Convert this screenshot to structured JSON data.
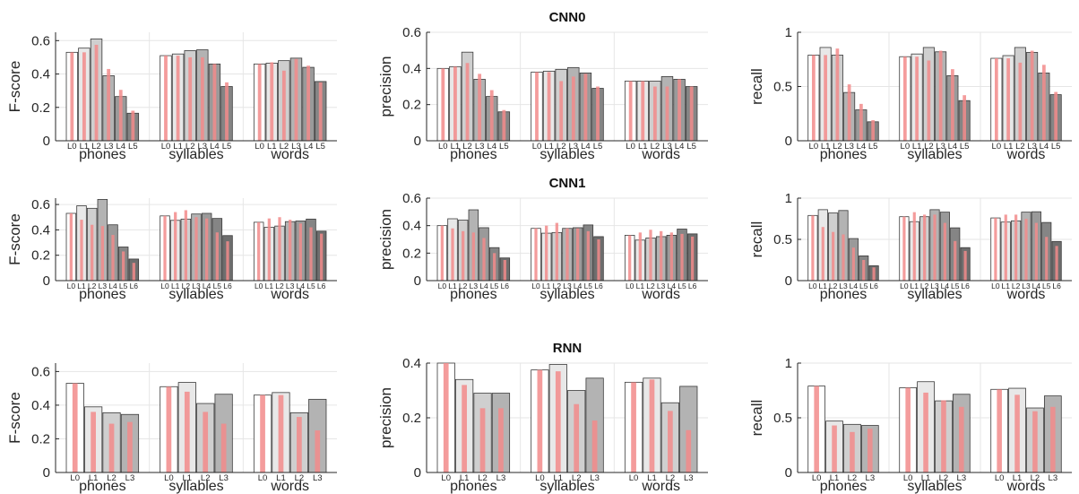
{
  "figure": {
    "colors": {
      "bar_fills": [
        "#ffffff",
        "#e8e8e8",
        "#cfcfcf",
        "#b3b3b3",
        "#9a9a9a",
        "#858585",
        "#6e6e6e"
      ],
      "bar_edge": "#3a3a3a",
      "overlay": "#f28b8b",
      "axis": "#262626",
      "grid": "#e6e6e6"
    },
    "row_titles": [
      "CNN0",
      "CNN1",
      "RNN"
    ]
  },
  "chart_data": [
    {
      "type": "bar",
      "row": "CNN0",
      "title": "",
      "ylabel": "F-score",
      "ylim": [
        0,
        0.65
      ],
      "yticks": [
        0,
        0.2,
        0.4,
        0.6
      ],
      "grid": true,
      "groups": [
        "phones",
        "syllables",
        "words"
      ],
      "levels": [
        "L0",
        "L1",
        "L2",
        "L3",
        "L4",
        "L5"
      ],
      "values": [
        [
          0.53,
          0.555,
          0.61,
          0.39,
          0.265,
          0.165
        ],
        [
          0.51,
          0.52,
          0.54,
          0.545,
          0.46,
          0.325
        ],
        [
          0.46,
          0.465,
          0.48,
          0.495,
          0.44,
          0.355
        ]
      ],
      "overlay": [
        [
          0.53,
          0.53,
          0.575,
          0.43,
          0.305,
          0.18
        ],
        [
          0.51,
          0.51,
          0.5,
          0.5,
          0.46,
          0.35
        ],
        [
          0.46,
          0.47,
          0.42,
          0.49,
          0.45,
          0.35
        ]
      ]
    },
    {
      "type": "bar",
      "row": "CNN0",
      "title": "CNN0",
      "ylabel": "precision",
      "ylim": [
        0,
        0.6
      ],
      "yticks": [
        0,
        0.2,
        0.4,
        0.6
      ],
      "grid": true,
      "groups": [
        "phones",
        "syllables",
        "words"
      ],
      "levels": [
        "L0",
        "L1",
        "L2",
        "L3",
        "L4",
        "L5"
      ],
      "values": [
        [
          0.4,
          0.41,
          0.49,
          0.34,
          0.245,
          0.16
        ],
        [
          0.38,
          0.385,
          0.395,
          0.405,
          0.375,
          0.29
        ],
        [
          0.33,
          0.33,
          0.33,
          0.355,
          0.34,
          0.3
        ]
      ],
      "overlay": [
        [
          0.4,
          0.41,
          0.43,
          0.37,
          0.28,
          0.17
        ],
        [
          0.38,
          0.38,
          0.33,
          0.355,
          0.37,
          0.3
        ],
        [
          0.33,
          0.33,
          0.3,
          0.3,
          0.34,
          0.3
        ]
      ]
    },
    {
      "type": "bar",
      "row": "CNN0",
      "title": "",
      "ylabel": "recall",
      "ylim": [
        0,
        1
      ],
      "yticks": [
        0,
        0.5,
        1
      ],
      "grid": true,
      "groups": [
        "phones",
        "syllables",
        "words"
      ],
      "levels": [
        "L0",
        "L1",
        "L2",
        "L3",
        "L4",
        "L5"
      ],
      "values": [
        [
          0.79,
          0.86,
          0.79,
          0.445,
          0.285,
          0.175
        ],
        [
          0.775,
          0.8,
          0.86,
          0.82,
          0.6,
          0.37
        ],
        [
          0.76,
          0.785,
          0.86,
          0.815,
          0.625,
          0.425
        ]
      ],
      "overlay": [
        [
          0.79,
          0.79,
          0.85,
          0.52,
          0.34,
          0.19
        ],
        [
          0.775,
          0.775,
          0.74,
          0.83,
          0.66,
          0.42
        ],
        [
          0.76,
          0.76,
          0.72,
          0.83,
          0.7,
          0.45
        ]
      ]
    },
    {
      "type": "bar",
      "row": "CNN1",
      "title": "",
      "ylabel": "F-score",
      "ylim": [
        0,
        0.65
      ],
      "yticks": [
        0,
        0.2,
        0.4,
        0.6
      ],
      "grid": true,
      "groups": [
        "phones",
        "syllables",
        "words"
      ],
      "levels": [
        "L0",
        "L1",
        "L2",
        "L3",
        "L4",
        "L5",
        "L6"
      ],
      "values": [
        [
          0.53,
          0.59,
          0.57,
          0.64,
          0.44,
          0.265,
          0.17
        ],
        [
          0.51,
          0.475,
          0.485,
          0.525,
          0.53,
          0.49,
          0.355
        ],
        [
          0.46,
          0.42,
          0.43,
          0.465,
          0.47,
          0.485,
          0.39
        ]
      ],
      "overlay": [
        [
          0.53,
          0.48,
          0.44,
          0.43,
          0.36,
          0.23,
          0.14
        ],
        [
          0.51,
          0.54,
          0.555,
          0.5,
          0.49,
          0.38,
          0.31
        ],
        [
          0.46,
          0.49,
          0.5,
          0.48,
          0.45,
          0.42,
          0.37
        ]
      ]
    },
    {
      "type": "bar",
      "row": "CNN1",
      "title": "CNN1",
      "ylabel": "precision",
      "ylim": [
        0,
        0.6
      ],
      "yticks": [
        0,
        0.2,
        0.4,
        0.6
      ],
      "grid": true,
      "groups": [
        "phones",
        "syllables",
        "words"
      ],
      "levels": [
        "L0",
        "L1",
        "L2",
        "L3",
        "L4",
        "L5",
        "L6"
      ],
      "values": [
        [
          0.4,
          0.45,
          0.44,
          0.515,
          0.385,
          0.24,
          0.165
        ],
        [
          0.38,
          0.345,
          0.35,
          0.38,
          0.385,
          0.405,
          0.32
        ],
        [
          0.33,
          0.295,
          0.31,
          0.32,
          0.33,
          0.375,
          0.34
        ]
      ],
      "overlay": [
        [
          0.4,
          0.38,
          0.36,
          0.35,
          0.31,
          0.2,
          0.15
        ],
        [
          0.38,
          0.4,
          0.42,
          0.38,
          0.38,
          0.36,
          0.3
        ],
        [
          0.33,
          0.35,
          0.37,
          0.36,
          0.35,
          0.34,
          0.32
        ]
      ]
    },
    {
      "type": "bar",
      "row": "CNN1",
      "title": "",
      "ylabel": "recall",
      "ylim": [
        0,
        1
      ],
      "yticks": [
        0,
        0.5,
        1
      ],
      "grid": true,
      "groups": [
        "phones",
        "syllables",
        "words"
      ],
      "levels": [
        "L0",
        "L1",
        "L2",
        "L3",
        "L4",
        "L5",
        "L6"
      ],
      "values": [
        [
          0.79,
          0.86,
          0.82,
          0.85,
          0.51,
          0.3,
          0.18
        ],
        [
          0.775,
          0.715,
          0.775,
          0.86,
          0.83,
          0.64,
          0.4
        ],
        [
          0.76,
          0.71,
          0.725,
          0.83,
          0.835,
          0.705,
          0.475
        ]
      ],
      "overlay": [
        [
          0.79,
          0.65,
          0.59,
          0.56,
          0.4,
          0.25,
          0.16
        ],
        [
          0.775,
          0.83,
          0.8,
          0.8,
          0.7,
          0.48,
          0.36
        ],
        [
          0.76,
          0.8,
          0.8,
          0.75,
          0.7,
          0.53,
          0.42
        ]
      ]
    },
    {
      "type": "bar",
      "row": "RNN",
      "title": "",
      "ylabel": "F-score",
      "ylim": [
        0,
        0.65
      ],
      "yticks": [
        0,
        0.2,
        0.4,
        0.6
      ],
      "grid": true,
      "groups": [
        "phones",
        "syllables",
        "words"
      ],
      "levels": [
        "L0",
        "L1",
        "L2",
        "L3"
      ],
      "values": [
        [
          0.53,
          0.39,
          0.355,
          0.345
        ],
        [
          0.51,
          0.535,
          0.41,
          0.465
        ],
        [
          0.46,
          0.475,
          0.355,
          0.435
        ]
      ],
      "overlay": [
        [
          0.53,
          0.36,
          0.29,
          0.3
        ],
        [
          0.51,
          0.48,
          0.36,
          0.29
        ],
        [
          0.46,
          0.46,
          0.33,
          0.25
        ]
      ]
    },
    {
      "type": "bar",
      "row": "RNN",
      "title": "RNN",
      "ylabel": "precision",
      "ylim": [
        0,
        0.4
      ],
      "yticks": [
        0,
        0.2,
        0.4
      ],
      "grid": true,
      "groups": [
        "phones",
        "syllables",
        "words"
      ],
      "levels": [
        "L0",
        "L1",
        "L2",
        "L3"
      ],
      "values": [
        [
          0.4,
          0.34,
          0.29,
          0.29
        ],
        [
          0.375,
          0.395,
          0.3,
          0.345
        ],
        [
          0.33,
          0.345,
          0.255,
          0.315
        ]
      ],
      "overlay": [
        [
          0.4,
          0.32,
          0.235,
          0.235
        ],
        [
          0.375,
          0.37,
          0.25,
          0.19
        ],
        [
          0.33,
          0.34,
          0.225,
          0.155
        ]
      ]
    },
    {
      "type": "bar",
      "row": "RNN",
      "title": "",
      "ylabel": "recall",
      "ylim": [
        0,
        1
      ],
      "yticks": [
        0,
        0.5,
        1
      ],
      "grid": true,
      "groups": [
        "phones",
        "syllables",
        "words"
      ],
      "levels": [
        "L0",
        "L1",
        "L2",
        "L3"
      ],
      "values": [
        [
          0.79,
          0.47,
          0.44,
          0.43
        ],
        [
          0.775,
          0.83,
          0.655,
          0.715
        ],
        [
          0.76,
          0.77,
          0.59,
          0.7
        ]
      ],
      "overlay": [
        [
          0.79,
          0.43,
          0.37,
          0.4
        ],
        [
          0.775,
          0.73,
          0.66,
          0.6
        ],
        [
          0.76,
          0.71,
          0.56,
          0.6
        ]
      ]
    }
  ]
}
